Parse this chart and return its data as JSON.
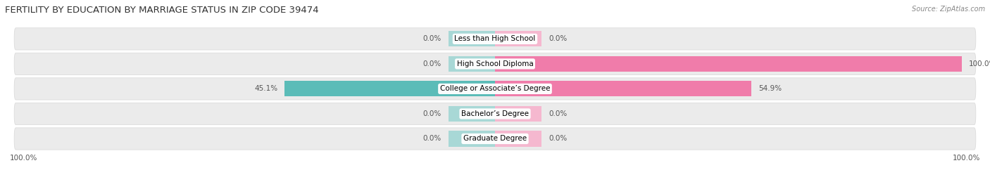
{
  "title": "FERTILITY BY EDUCATION BY MARRIAGE STATUS IN ZIP CODE 39474",
  "source": "Source: ZipAtlas.com",
  "categories": [
    "Less than High School",
    "High School Diploma",
    "College or Associate’s Degree",
    "Bachelor’s Degree",
    "Graduate Degree"
  ],
  "married_values": [
    0.0,
    0.0,
    45.1,
    0.0,
    0.0
  ],
  "unmarried_values": [
    0.0,
    100.0,
    54.9,
    0.0,
    0.0
  ],
  "married_color": "#5bbcb8",
  "unmarried_color": "#f07caa",
  "married_light_color": "#a8d8d6",
  "unmarried_light_color": "#f5b8cf",
  "row_bg_color": "#ebebeb",
  "background_color": "#ffffff",
  "stub_size": 10,
  "bar_height": 0.62,
  "title_fontsize": 9.5,
  "label_fontsize": 7.5,
  "tick_fontsize": 7.5,
  "source_fontsize": 7,
  "xlim_abs": 105
}
